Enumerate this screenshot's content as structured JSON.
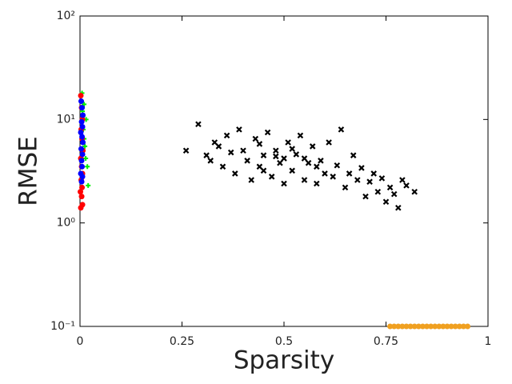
{
  "chart_data": {
    "type": "scatter",
    "xlabel": "Sparsity",
    "ylabel": "RMSE",
    "log_y": true,
    "xlim": [
      0,
      1
    ],
    "ylim": [
      0.1,
      100
    ],
    "xticks": [
      0,
      0.25,
      0.5,
      0.75,
      1
    ],
    "yticks": [
      {
        "value": 0.1,
        "label": "10⁻¹"
      },
      {
        "value": 1,
        "label": "10⁰"
      },
      {
        "value": 10,
        "label": "10¹"
      },
      {
        "value": 100,
        "label": "10²"
      }
    ],
    "series": [
      {
        "color": "#000000",
        "marker": "x",
        "x": [
          0.26,
          0.29,
          0.31,
          0.32,
          0.33,
          0.34,
          0.35,
          0.36,
          0.37,
          0.38,
          0.39,
          0.4,
          0.41,
          0.42,
          0.43,
          0.44,
          0.45,
          0.46,
          0.47,
          0.48,
          0.49,
          0.5,
          0.5,
          0.51,
          0.52,
          0.53,
          0.54,
          0.55,
          0.56,
          0.57,
          0.58,
          0.59,
          0.6,
          0.61,
          0.62,
          0.63,
          0.64,
          0.65,
          0.66,
          0.67,
          0.68,
          0.69,
          0.7,
          0.71,
          0.72,
          0.73,
          0.74,
          0.75,
          0.76,
          0.77,
          0.78,
          0.79,
          0.8,
          0.82,
          0.45,
          0.48,
          0.52,
          0.55,
          0.44,
          0.58
        ],
        "values": [
          5,
          9,
          4.5,
          4,
          6,
          5.5,
          3.5,
          7,
          4.8,
          3,
          8,
          5,
          4,
          2.6,
          6.5,
          3.5,
          4.5,
          7.5,
          2.8,
          5,
          3.8,
          4.2,
          2.4,
          6,
          3.2,
          4.6,
          7,
          2.6,
          3.8,
          5.5,
          2.4,
          4,
          3,
          6,
          2.8,
          3.6,
          8,
          2.2,
          3,
          4.5,
          2.6,
          3.4,
          1.8,
          2.5,
          3,
          2,
          2.7,
          1.6,
          2.2,
          1.9,
          1.4,
          2.6,
          2.3,
          2,
          3.2,
          4.4,
          5.2,
          4.2,
          5.8,
          3.5
        ]
      },
      {
        "color": "#00ee00",
        "marker": "plus",
        "x": [
          0.005,
          0.01,
          0.015,
          0.02,
          0.008,
          0.012,
          0.018,
          0.006,
          0.014,
          0.01
        ],
        "values": [
          18,
          14,
          10,
          2.3,
          8,
          5.5,
          3.5,
          12,
          4.2,
          6.5
        ]
      },
      {
        "color": "#ff0000",
        "marker": "circle",
        "x": [
          0.002,
          0.004,
          0.006,
          0.003,
          0.005,
          0.007,
          0.002,
          0.004,
          0.006,
          0.003,
          0.005,
          0.001,
          0.004,
          0.006,
          0.002
        ],
        "values": [
          17,
          13,
          10,
          8,
          6.5,
          5,
          4.2,
          3.5,
          3,
          2.6,
          2.2,
          2,
          1.8,
          1.5,
          1.4
        ]
      },
      {
        "color": "#0000ff",
        "marker": "circle",
        "x": [
          0.003,
          0.005,
          0.007,
          0.004,
          0.006,
          0.002,
          0.005,
          0.007,
          0.003,
          0.006,
          0.004,
          0.005,
          0.002,
          0.006,
          0.004
        ],
        "values": [
          15,
          13,
          11,
          9.5,
          8.5,
          7.5,
          6.8,
          6,
          5.2,
          4.6,
          4,
          3.5,
          3,
          2.8,
          2.5
        ]
      },
      {
        "color": "#f0a020",
        "marker": "circle",
        "x": [
          0.76,
          0.77,
          0.78,
          0.79,
          0.8,
          0.81,
          0.82,
          0.83,
          0.84,
          0.85,
          0.86,
          0.87,
          0.88,
          0.89,
          0.9,
          0.91,
          0.92,
          0.93,
          0.94,
          0.95
        ],
        "values": [
          0.1,
          0.1,
          0.1,
          0.1,
          0.1,
          0.1,
          0.1,
          0.1,
          0.1,
          0.1,
          0.1,
          0.1,
          0.1,
          0.1,
          0.1,
          0.1,
          0.1,
          0.1,
          0.1,
          0.1
        ]
      }
    ]
  }
}
